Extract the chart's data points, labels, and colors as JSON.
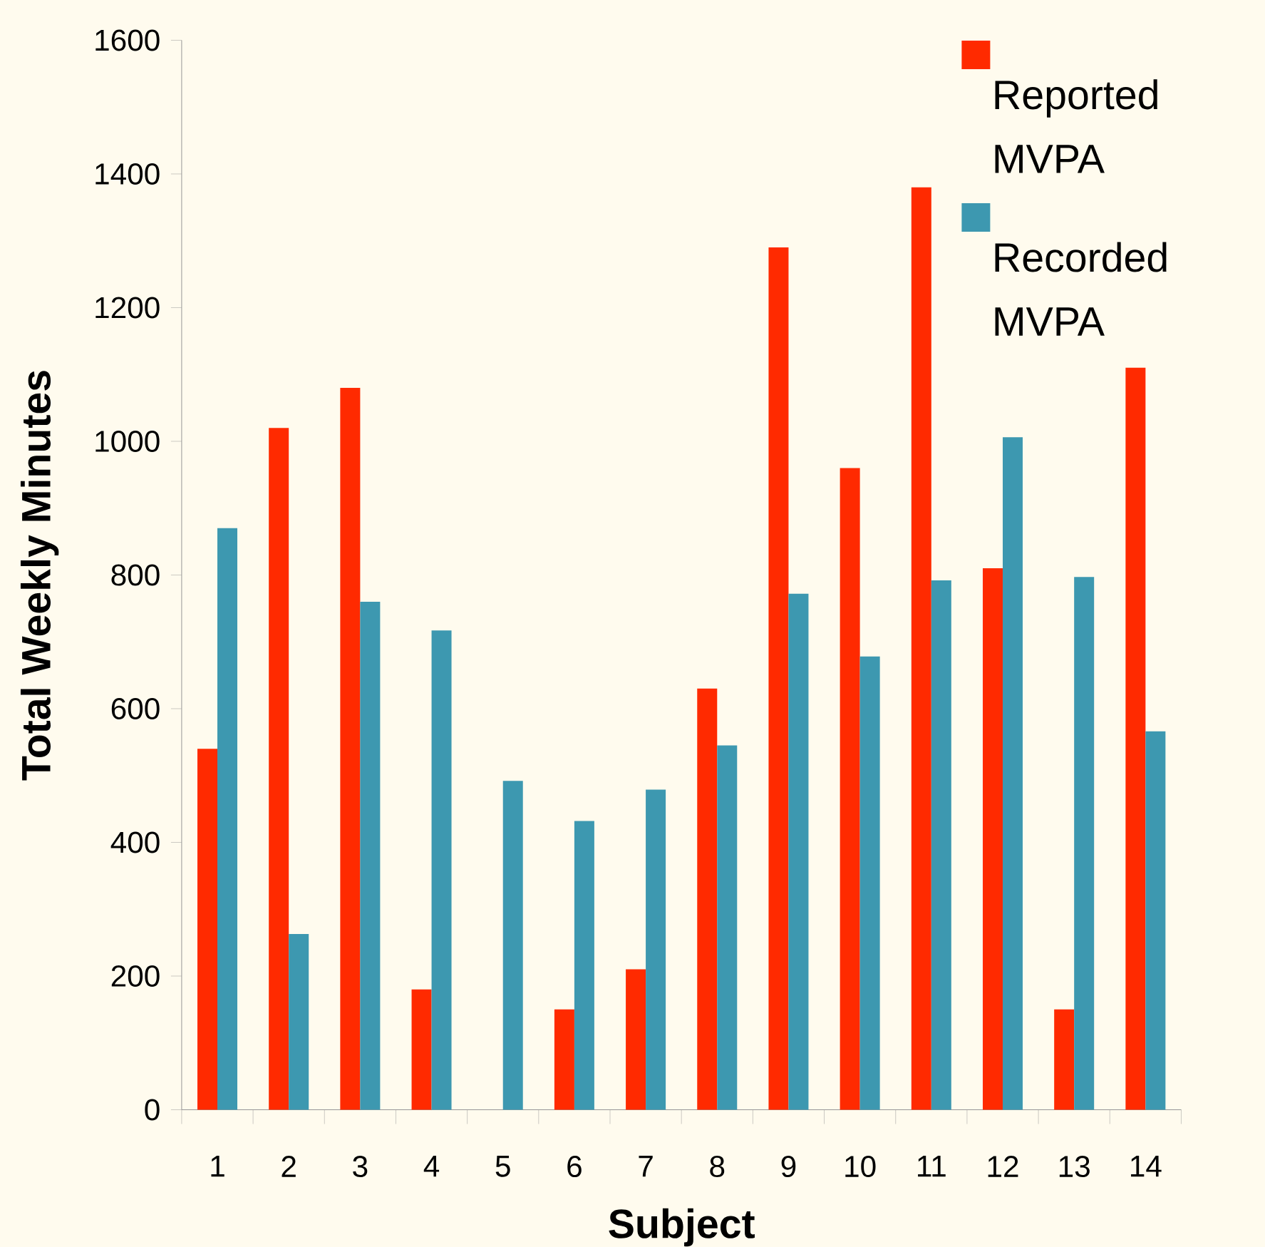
{
  "chart_data": {
    "type": "bar",
    "xlabel": "Subject",
    "ylabel": "Total Weekly Minutes",
    "categories": [
      "1",
      "2",
      "3",
      "4",
      "5",
      "6",
      "7",
      "8",
      "9",
      "10",
      "11",
      "12",
      "13",
      "14"
    ],
    "series": [
      {
        "name": "Reported MVPA",
        "color": "#ff2a00",
        "values": [
          540,
          1020,
          1080,
          180,
          0,
          150,
          210,
          630,
          1290,
          960,
          1380,
          810,
          150,
          1110
        ]
      },
      {
        "name": "Recorded MVPA",
        "color": "#3d98b0",
        "values": [
          870,
          263,
          760,
          717,
          492,
          432,
          479,
          545,
          772,
          678,
          792,
          1006,
          797,
          566
        ]
      }
    ],
    "ylim": [
      0,
      1600
    ],
    "yticks": [
      0,
      200,
      400,
      600,
      800,
      1000,
      1200,
      1400,
      1600
    ],
    "grid": false,
    "legend": "top right"
  }
}
